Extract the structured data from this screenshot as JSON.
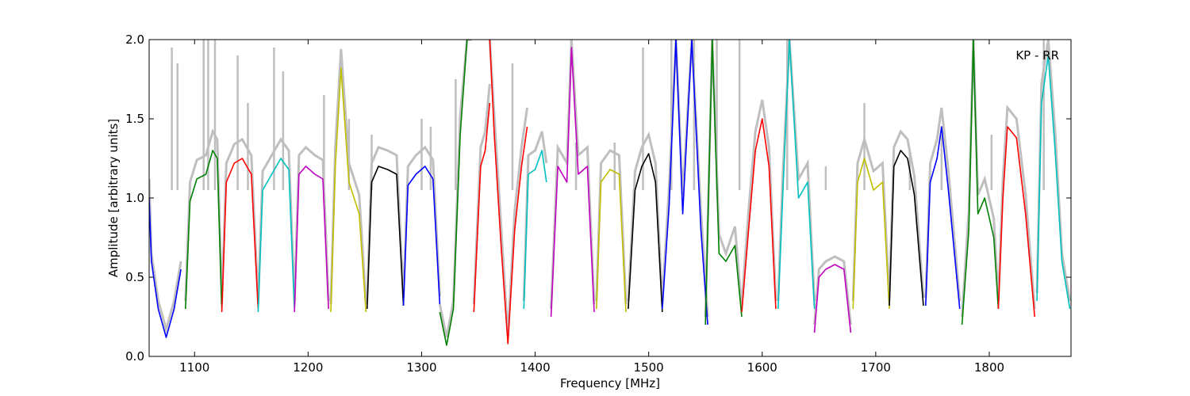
{
  "chart_data": {
    "type": "line",
    "title": "",
    "annotation": "KP - RR",
    "xlabel": "Frequency [MHz]",
    "ylabel": "Amplitude [arbitrary units]",
    "xlim": [
      1060,
      1872
    ],
    "ylim": [
      0.0,
      2.0
    ],
    "xticks": [
      1100,
      1200,
      1300,
      1400,
      1500,
      1600,
      1700,
      1800
    ],
    "xtick_labels": [
      "1100",
      "1200",
      "1300",
      "1400",
      "1500",
      "1600",
      "1700",
      "1800"
    ],
    "yticks": [
      0.0,
      0.5,
      1.0,
      1.5,
      2.0
    ],
    "ytick_labels": [
      "0.0",
      "0.5",
      "1.0",
      "1.5",
      "2.0"
    ],
    "grid": false,
    "background_series_color": "#bfbfbf",
    "band_colors": [
      "#0000ff",
      "#008000",
      "#ff0000",
      "#00bfbf",
      "#bf00bf",
      "#bfbf00",
      "#000000"
    ],
    "bands": [
      {
        "x": [
          1060,
          1062,
          1068,
          1075,
          1082,
          1088
        ],
        "y": [
          1.0,
          0.6,
          0.3,
          0.12,
          0.3,
          0.55
        ],
        "color": "#0000ff"
      },
      {
        "x": [
          1092,
          1096,
          1102,
          1110,
          1116,
          1120,
          1124
        ],
        "y": [
          0.3,
          0.98,
          1.12,
          1.15,
          1.3,
          1.25,
          0.3
        ],
        "color": "#008000"
      },
      {
        "x": [
          1124,
          1128,
          1135,
          1142,
          1150,
          1156
        ],
        "y": [
          0.28,
          1.1,
          1.22,
          1.25,
          1.15,
          0.3
        ],
        "color": "#ff0000"
      },
      {
        "x": [
          1156,
          1160,
          1168,
          1176,
          1183,
          1188
        ],
        "y": [
          0.28,
          1.05,
          1.15,
          1.25,
          1.18,
          0.3
        ],
        "color": "#00bfbf"
      },
      {
        "x": [
          1188,
          1192,
          1198,
          1206,
          1213,
          1218
        ],
        "y": [
          0.28,
          1.15,
          1.2,
          1.15,
          1.12,
          0.3
        ],
        "color": "#bf00bf"
      },
      {
        "x": [
          1220,
          1224,
          1229,
          1236,
          1245,
          1251
        ],
        "y": [
          0.28,
          1.2,
          1.82,
          1.1,
          0.9,
          0.28
        ],
        "color": "#bfbf00"
      },
      {
        "x": [
          1252,
          1256,
          1262,
          1270,
          1278,
          1284
        ],
        "y": [
          0.3,
          1.1,
          1.2,
          1.18,
          1.15,
          0.32
        ],
        "color": "#000000"
      },
      {
        "x": [
          1284,
          1288,
          1295,
          1303,
          1310,
          1316
        ],
        "y": [
          0.32,
          1.08,
          1.15,
          1.2,
          1.12,
          0.33
        ],
        "color": "#0000ff"
      },
      {
        "x": [
          1316,
          1322,
          1328,
          1334,
          1340,
          1344
        ],
        "y": [
          0.28,
          0.07,
          0.3,
          1.4,
          2.0,
          2.0
        ],
        "color": "#008000"
      },
      {
        "x": [
          1346,
          1352,
          1356,
          1360
        ],
        "y": [
          0.28,
          1.2,
          1.3,
          1.6
        ],
        "color": "#ff0000"
      },
      {
        "x": [
          1360,
          1364,
          1370,
          1376,
          1382,
          1388,
          1393
        ],
        "y": [
          2.0,
          1.4,
          0.7,
          0.08,
          0.8,
          1.2,
          1.45
        ],
        "color": "#ff0000"
      },
      {
        "x": [
          1390,
          1394,
          1400,
          1406,
          1410
        ],
        "y": [
          0.3,
          1.15,
          1.18,
          1.3,
          1.1
        ],
        "color": "#00bfbf"
      },
      {
        "x": [
          1414,
          1420,
          1428,
          1432,
          1438,
          1446,
          1452
        ],
        "y": [
          0.25,
          1.2,
          1.1,
          1.95,
          1.15,
          1.2,
          0.28
        ],
        "color": "#bf00bf"
      },
      {
        "x": [
          1454,
          1458,
          1466,
          1474,
          1480
        ],
        "y": [
          0.3,
          1.1,
          1.18,
          1.15,
          0.28
        ],
        "color": "#bfbf00"
      },
      {
        "x": [
          1482,
          1488,
          1494,
          1500,
          1506,
          1512
        ],
        "y": [
          0.3,
          1.05,
          1.2,
          1.28,
          1.1,
          0.28
        ],
        "color": "#000000"
      },
      {
        "x": [
          1512,
          1518,
          1524,
          1530,
          1538,
          1546,
          1552
        ],
        "y": [
          0.3,
          0.95,
          2.0,
          0.9,
          2.0,
          0.8,
          0.2
        ],
        "color": "#0000ff"
      },
      {
        "x": [
          1550,
          1556,
          1562,
          1568,
          1576,
          1582
        ],
        "y": [
          0.2,
          2.0,
          0.65,
          0.6,
          0.7,
          0.25
        ],
        "color": "#008000"
      },
      {
        "x": [
          1582,
          1588,
          1594,
          1600,
          1606,
          1612
        ],
        "y": [
          0.28,
          0.8,
          1.3,
          1.5,
          1.2,
          0.3
        ],
        "color": "#ff0000"
      },
      {
        "x": [
          1614,
          1618,
          1624,
          1632,
          1640,
          1646
        ],
        "y": [
          0.3,
          1.0,
          2.0,
          1.0,
          1.1,
          0.3
        ],
        "color": "#00bfbf"
      },
      {
        "x": [
          1646,
          1650,
          1656,
          1664,
          1672,
          1678
        ],
        "y": [
          0.15,
          0.5,
          0.55,
          0.58,
          0.55,
          0.15
        ],
        "color": "#bf00bf"
      },
      {
        "x": [
          1680,
          1684,
          1690,
          1698,
          1706,
          1712
        ],
        "y": [
          0.3,
          1.1,
          1.25,
          1.05,
          1.1,
          0.3
        ],
        "color": "#bfbf00"
      },
      {
        "x": [
          1712,
          1716,
          1722,
          1728,
          1734,
          1742
        ],
        "y": [
          0.32,
          1.2,
          1.3,
          1.25,
          1.02,
          0.32
        ],
        "color": "#000000"
      },
      {
        "x": [
          1744,
          1748,
          1754,
          1758,
          1764,
          1774
        ],
        "y": [
          0.32,
          1.1,
          1.25,
          1.45,
          1.05,
          0.3
        ],
        "color": "#0000ff"
      },
      {
        "x": [
          1776,
          1782,
          1786,
          1790,
          1796,
          1804,
          1808
        ],
        "y": [
          0.2,
          0.8,
          2.0,
          0.9,
          1.0,
          0.75,
          0.3
        ],
        "color": "#008000"
      },
      {
        "x": [
          1808,
          1812,
          1816,
          1824,
          1832,
          1840
        ],
        "y": [
          0.3,
          1.0,
          1.45,
          1.38,
          0.9,
          0.25
        ],
        "color": "#ff0000"
      },
      {
        "x": [
          1842,
          1846,
          1852,
          1858,
          1864,
          1871
        ],
        "y": [
          0.35,
          1.6,
          1.9,
          1.3,
          0.6,
          0.3
        ],
        "color": "#00bfbf"
      }
    ],
    "background_spikes": [
      {
        "x": 1080,
        "y": 1.95
      },
      {
        "x": 1085,
        "y": 1.85
      },
      {
        "x": 1108,
        "y": 2.0
      },
      {
        "x": 1112,
        "y": 2.0
      },
      {
        "x": 1118,
        "y": 2.0
      },
      {
        "x": 1138,
        "y": 1.9
      },
      {
        "x": 1147,
        "y": 1.6
      },
      {
        "x": 1170,
        "y": 1.95
      },
      {
        "x": 1178,
        "y": 1.8
      },
      {
        "x": 1214,
        "y": 1.65
      },
      {
        "x": 1236,
        "y": 1.5
      },
      {
        "x": 1256,
        "y": 1.4
      },
      {
        "x": 1300,
        "y": 1.5
      },
      {
        "x": 1308,
        "y": 1.45
      },
      {
        "x": 1330,
        "y": 1.75
      },
      {
        "x": 1380,
        "y": 1.85
      },
      {
        "x": 1436,
        "y": 1.35
      },
      {
        "x": 1470,
        "y": 1.35
      },
      {
        "x": 1495,
        "y": 1.95
      },
      {
        "x": 1520,
        "y": 2.0
      },
      {
        "x": 1540,
        "y": 2.0
      },
      {
        "x": 1560,
        "y": 2.0
      },
      {
        "x": 1580,
        "y": 2.0
      },
      {
        "x": 1622,
        "y": 2.0
      },
      {
        "x": 1656,
        "y": 1.2
      },
      {
        "x": 1690,
        "y": 1.6
      },
      {
        "x": 1730,
        "y": 1.3
      },
      {
        "x": 1758,
        "y": 1.4
      },
      {
        "x": 1802,
        "y": 1.4
      },
      {
        "x": 1848,
        "y": 2.0
      }
    ]
  }
}
